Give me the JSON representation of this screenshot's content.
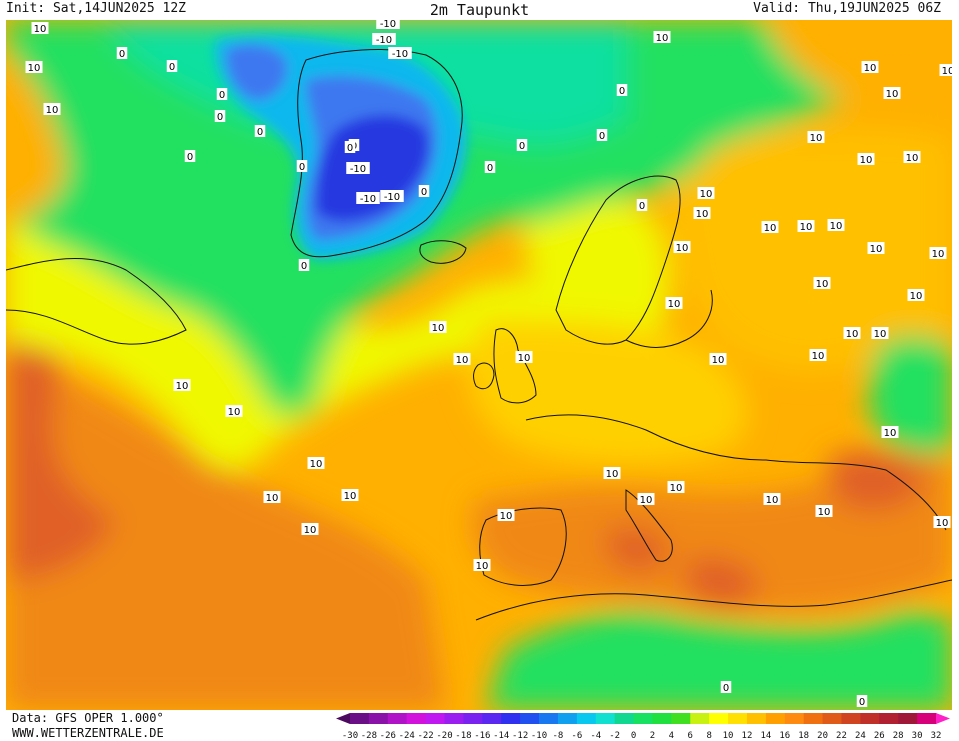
{
  "header": {
    "init": "Init: Sat,14JUN2025 12Z",
    "title": "2m Taupunkt",
    "valid": "Valid: Thu,19JUN2025 06Z"
  },
  "footer": {
    "data_source": "Data: GFS OPER 1.000°",
    "website": "WWW.WETTERZENTRALE.DE"
  },
  "legend": {
    "ticks": [
      "-30",
      "-28",
      "-26",
      "-24",
      "-22",
      "-20",
      "-18",
      "-16",
      "-14",
      "-12",
      "-10",
      "-8",
      "-6",
      "-4",
      "-2",
      "0",
      "2",
      "4",
      "6",
      "8",
      "10",
      "12",
      "14",
      "16",
      "18",
      "20",
      "22",
      "24",
      "26",
      "28",
      "30",
      "32"
    ],
    "colors": [
      "#4b0a5e",
      "#6a0f86",
      "#8b12a8",
      "#b012c8",
      "#d212dc",
      "#c018f0",
      "#9a1ef0",
      "#7a22f0",
      "#5a28f0",
      "#3030f0",
      "#2050f0",
      "#1878f0",
      "#10a0f0",
      "#08c8f0",
      "#10e0d0",
      "#10d890",
      "#18e060",
      "#20e040",
      "#40e020",
      "#c8f010",
      "#ffff00",
      "#ffe000",
      "#ffc000",
      "#ffa000",
      "#ff8a10",
      "#f07010",
      "#e05a18",
      "#d04420",
      "#c03028",
      "#b02030",
      "#a01838",
      "#d8007a",
      "#ff20c8"
    ],
    "palette": {
      "very_cold": "#2838e0",
      "cold": "#3c78f0",
      "ice": "#10b8ee",
      "cool": "#10e0a0",
      "mild": "#20e060",
      "yellow": "#f0f800",
      "light_orange": "#ffd000",
      "orange": "#ffb000",
      "dark_orange": "#f08818",
      "hot": "#e06028",
      "very_hot": "#c84030"
    }
  },
  "map_labels": [
    {
      "text": "10"
    },
    {
      "text": "10"
    },
    {
      "text": "10"
    },
    {
      "text": "0"
    },
    {
      "text": "0"
    },
    {
      "text": "0"
    },
    {
      "text": "0"
    },
    {
      "text": "0"
    },
    {
      "text": "0"
    },
    {
      "text": "0"
    },
    {
      "text": "-10"
    },
    {
      "text": "-10"
    },
    {
      "text": "-10"
    },
    {
      "text": "-10"
    },
    {
      "text": "-10"
    },
    {
      "text": "-10"
    },
    {
      "text": "0"
    },
    {
      "text": "0"
    },
    {
      "text": "0"
    },
    {
      "text": "0"
    },
    {
      "text": "0"
    },
    {
      "text": "0"
    },
    {
      "text": "0"
    },
    {
      "text": "0"
    },
    {
      "text": "0"
    },
    {
      "text": "10"
    },
    {
      "text": "10"
    },
    {
      "text": "10"
    },
    {
      "text": "10"
    },
    {
      "text": "10"
    },
    {
      "text": "10"
    },
    {
      "text": "10"
    },
    {
      "text": "10"
    },
    {
      "text": "10"
    },
    {
      "text": "10"
    },
    {
      "text": "10"
    },
    {
      "text": "10"
    },
    {
      "text": "10"
    },
    {
      "text": "10"
    },
    {
      "text": "10"
    },
    {
      "text": "10"
    },
    {
      "text": "10"
    },
    {
      "text": "10"
    },
    {
      "text": "10"
    },
    {
      "text": "10"
    },
    {
      "text": "10"
    },
    {
      "text": "10"
    },
    {
      "text": "10"
    },
    {
      "text": "10"
    },
    {
      "text": "10"
    },
    {
      "text": "10"
    },
    {
      "text": "10"
    },
    {
      "text": "10"
    },
    {
      "text": "10"
    },
    {
      "text": "10"
    },
    {
      "text": "10"
    },
    {
      "text": "10"
    },
    {
      "text": "10"
    },
    {
      "text": "10"
    },
    {
      "text": "10"
    },
    {
      "text": "10"
    },
    {
      "text": "10"
    },
    {
      "text": "10"
    },
    {
      "text": "10"
    },
    {
      "text": "10"
    },
    {
      "text": "0"
    },
    {
      "text": "0"
    }
  ]
}
